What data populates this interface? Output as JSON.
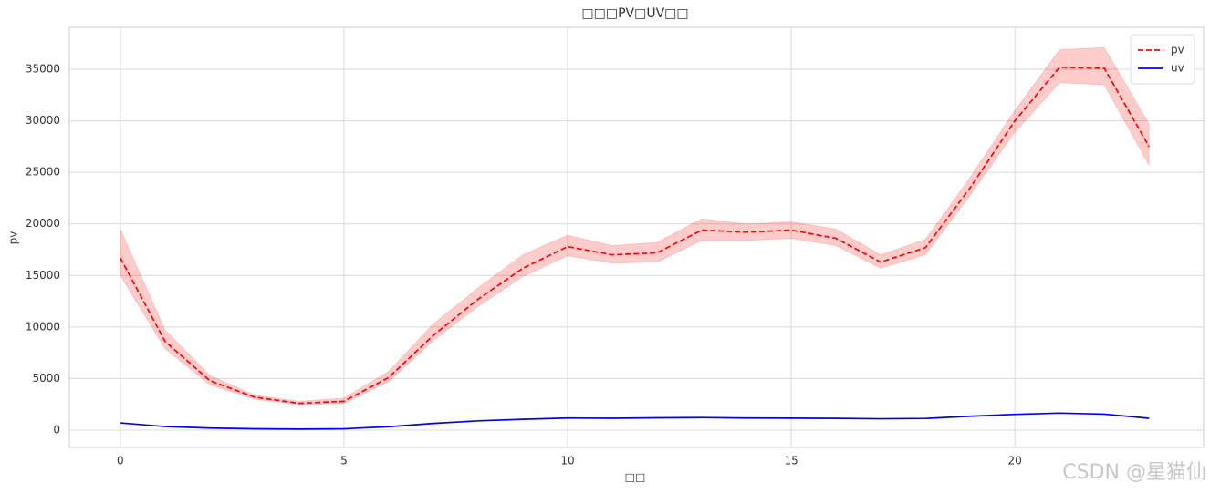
{
  "chart_data": {
    "type": "line",
    "title": "□□□PV□UV□□",
    "x_label": "□□",
    "y_label": "pv",
    "x": [
      0,
      1,
      2,
      3,
      4,
      5,
      6,
      7,
      8,
      9,
      10,
      11,
      12,
      13,
      14,
      15,
      16,
      17,
      18,
      19,
      20,
      21,
      22,
      23
    ],
    "series": [
      {
        "name": "pv",
        "color": "#ff0000",
        "dash": true,
        "values": [
          16700,
          8600,
          4800,
          3200,
          2600,
          2800,
          5100,
          9200,
          12700,
          15700,
          17800,
          17000,
          17200,
          19400,
          19200,
          19400,
          18600,
          16300,
          17700,
          23500,
          30000,
          35200,
          35100,
          27500
        ],
        "band_upper": [
          19500,
          9700,
          5300,
          3400,
          2800,
          3100,
          5700,
          10300,
          13800,
          17000,
          18900,
          17900,
          18200,
          20500,
          20000,
          20200,
          19500,
          17000,
          18500,
          24500,
          31000,
          36900,
          37100,
          29700
        ],
        "band_lower": [
          15000,
          7900,
          4400,
          3000,
          2500,
          2600,
          4700,
          8700,
          12000,
          14900,
          16900,
          16200,
          16300,
          18400,
          18400,
          18600,
          17900,
          15700,
          17000,
          22800,
          28900,
          33700,
          33500,
          25700
        ]
      },
      {
        "name": "uv",
        "color": "#0000ff",
        "dash": false,
        "values": [
          700,
          350,
          200,
          130,
          100,
          130,
          330,
          650,
          900,
          1050,
          1170,
          1150,
          1190,
          1220,
          1170,
          1160,
          1140,
          1100,
          1130,
          1350,
          1530,
          1650,
          1550,
          1150
        ]
      }
    ],
    "xlim": [
      -1.14,
      24.22
    ],
    "xticks": [
      0,
      5,
      10,
      15,
      20
    ],
    "ylim": [
      -1680,
      39070
    ],
    "yticks": [
      0,
      5000,
      10000,
      15000,
      20000,
      25000,
      30000,
      35000
    ],
    "grid": true,
    "legend": "upper right",
    "watermark": "CSDN @星猫仙"
  }
}
